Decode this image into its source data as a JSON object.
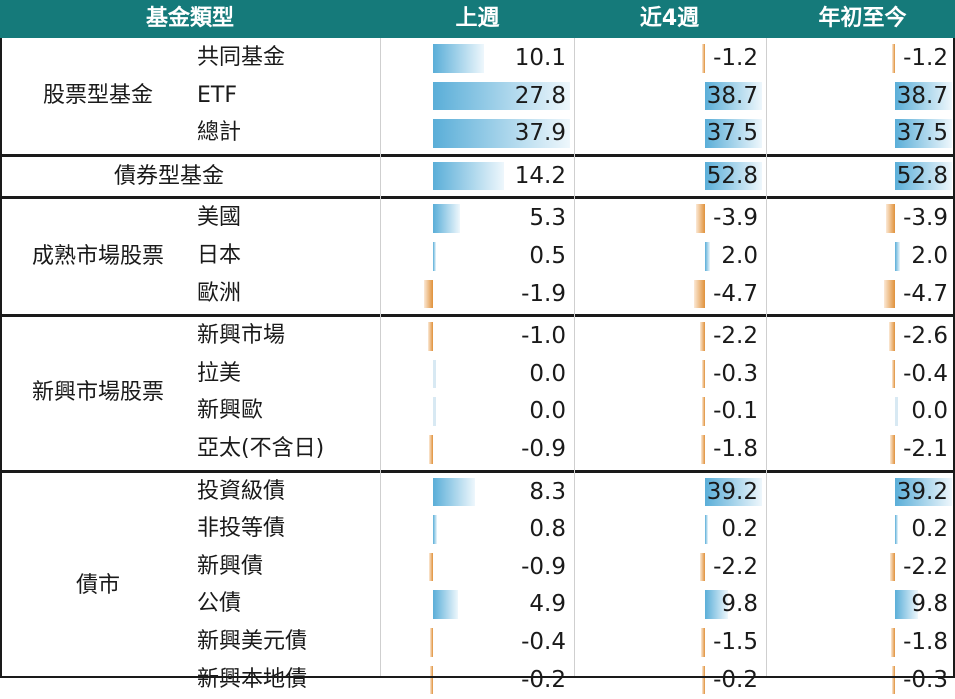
{
  "header": {
    "fund_type": "基金類型",
    "cols": [
      "上週",
      "近4週",
      "年初至今"
    ]
  },
  "colors": {
    "header_bg": "#157a7a",
    "positive_bar": "#5aaed8",
    "negative_bar": "#e0913a"
  },
  "groups": [
    {
      "label": "股票型基金",
      "rows": [
        {
          "name": "共同基金",
          "values": [
            "10.1",
            "-1.2",
            "-1.2"
          ]
        },
        {
          "name": "ETF",
          "values": [
            "27.8",
            "38.7",
            "38.7"
          ]
        },
        {
          "name": "總計",
          "values": [
            "37.9",
            "37.5",
            "37.5"
          ]
        }
      ]
    },
    {
      "label": "債券型基金",
      "rows": [
        {
          "name": "",
          "values": [
            "14.2",
            "52.8",
            "52.8"
          ]
        }
      ]
    },
    {
      "label": "成熟市場股票",
      "rows": [
        {
          "name": "美國",
          "values": [
            "5.3",
            "-3.9",
            "-3.9"
          ]
        },
        {
          "name": "日本",
          "values": [
            "0.5",
            "2.0",
            "2.0"
          ]
        },
        {
          "name": "歐洲",
          "values": [
            "-1.9",
            "-4.7",
            "-4.7"
          ]
        }
      ]
    },
    {
      "label": "新興市場股票",
      "rows": [
        {
          "name": "新興市場",
          "values": [
            "-1.0",
            "-2.2",
            "-2.6"
          ]
        },
        {
          "name": "拉美",
          "values": [
            "0.0",
            "-0.3",
            "-0.4"
          ]
        },
        {
          "name": "新興歐",
          "values": [
            "0.0",
            "-0.1",
            "0.0"
          ]
        },
        {
          "name": "亞太(不含日)",
          "values": [
            "-0.9",
            "-1.8",
            "-2.1"
          ]
        }
      ]
    },
    {
      "label": "債市",
      "rows": [
        {
          "name": "投資級債",
          "values": [
            "8.3",
            "39.2",
            "39.2"
          ]
        },
        {
          "name": "非投等債",
          "values": [
            "0.8",
            "0.2",
            "0.2"
          ]
        },
        {
          "name": "新興債",
          "values": [
            "-0.9",
            "-2.2",
            "-2.2"
          ]
        },
        {
          "name": "公債",
          "values": [
            "4.9",
            "9.8",
            "9.8"
          ]
        },
        {
          "name": "新興美元債",
          "values": [
            "-0.4",
            "-1.5",
            "-1.8"
          ]
        },
        {
          "name": "新興本地債",
          "values": [
            "-0.2",
            "-0.2",
            "-0.3"
          ]
        }
      ]
    }
  ]
}
